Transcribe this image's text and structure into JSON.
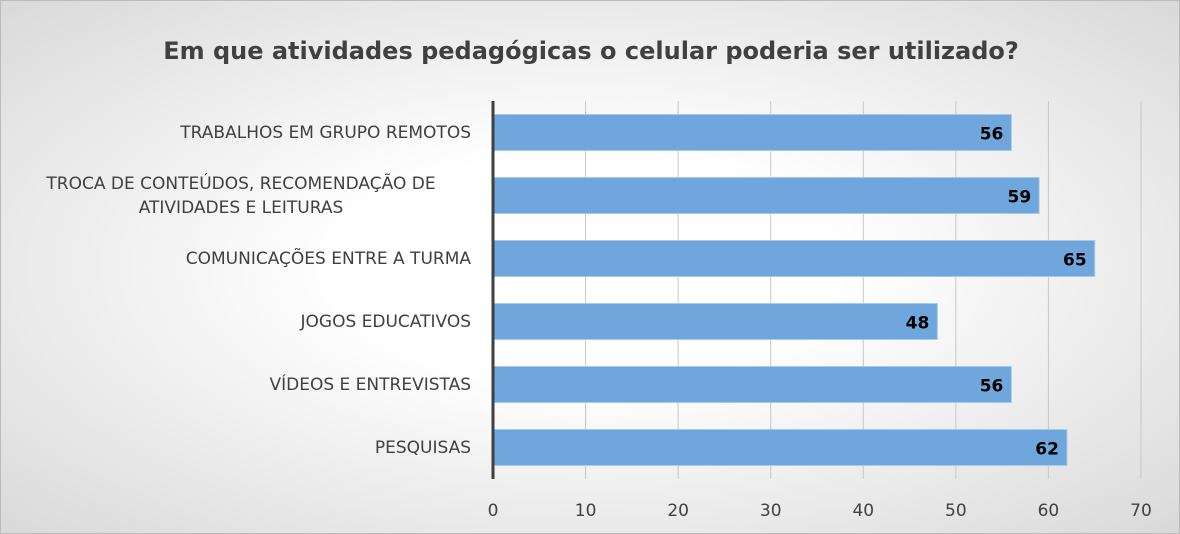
{
  "chart_data": {
    "type": "bar",
    "orientation": "horizontal",
    "title": "Em que atividades pedagógicas o celular poderia ser utilizado?",
    "categories": [
      "TRABALHOS EM GRUPO REMOTOS",
      "TROCA DE CONTEÚDOS, RECOMENDAÇÃO DE ATIVIDADES E LEITURAS",
      "COMUNICAÇÕES ENTRE A TURMA",
      "JOGOS EDUCATIVOS",
      "VÍDEOS E ENTREVISTAS",
      "PESQUISAS"
    ],
    "values": [
      56,
      59,
      65,
      48,
      56,
      62
    ],
    "color": "#6fa6dc",
    "xlim": [
      0,
      70
    ],
    "xticks": [
      0,
      10,
      20,
      30,
      40,
      50,
      60,
      70
    ],
    "grid": true
  }
}
